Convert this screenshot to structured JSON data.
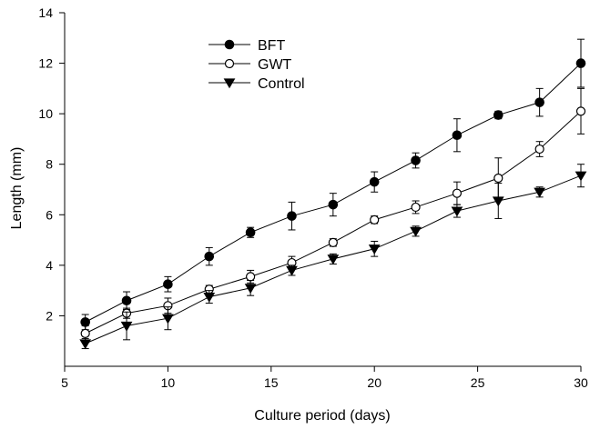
{
  "chart_data": {
    "type": "line",
    "title": "",
    "xlabel": "Culture period (days)",
    "ylabel": "Length (mm)",
    "xlim": [
      5,
      30
    ],
    "ylim": [
      0,
      14
    ],
    "xticks": [
      5,
      10,
      15,
      20,
      25,
      30
    ],
    "yticks": [
      2,
      4,
      6,
      8,
      10,
      12,
      14
    ],
    "grid": false,
    "legend_position": "top-center",
    "x": [
      6,
      8,
      10,
      12,
      14,
      16,
      18,
      20,
      22,
      24,
      26,
      28,
      30
    ],
    "series": [
      {
        "name": "BFT",
        "marker": "filled-circle",
        "values": [
          1.75,
          2.6,
          3.25,
          4.35,
          5.3,
          5.95,
          6.4,
          7.3,
          8.15,
          9.15,
          9.95,
          10.45,
          12.0
        ],
        "errors": [
          0.3,
          0.35,
          0.3,
          0.35,
          0.2,
          0.55,
          0.45,
          0.4,
          0.3,
          0.65,
          0.15,
          0.55,
          0.95
        ]
      },
      {
        "name": "GWT",
        "marker": "open-circle",
        "values": [
          1.3,
          2.1,
          2.4,
          3.05,
          3.55,
          4.1,
          4.9,
          5.8,
          6.3,
          6.85,
          7.45,
          8.6,
          10.1
        ],
        "errors": [
          0.3,
          0.2,
          0.3,
          0.15,
          0.25,
          0.25,
          0.15,
          0.15,
          0.25,
          0.45,
          0.8,
          0.3,
          0.9
        ]
      },
      {
        "name": "Control",
        "marker": "filled-triangle-down",
        "values": [
          0.9,
          1.6,
          1.9,
          2.75,
          3.1,
          3.8,
          4.25,
          4.65,
          5.35,
          6.15,
          6.55,
          6.9,
          7.55
        ],
        "errors": [
          0.2,
          0.55,
          0.45,
          0.25,
          0.3,
          0.2,
          0.2,
          0.3,
          0.2,
          0.25,
          0.7,
          0.2,
          0.45
        ]
      }
    ]
  }
}
